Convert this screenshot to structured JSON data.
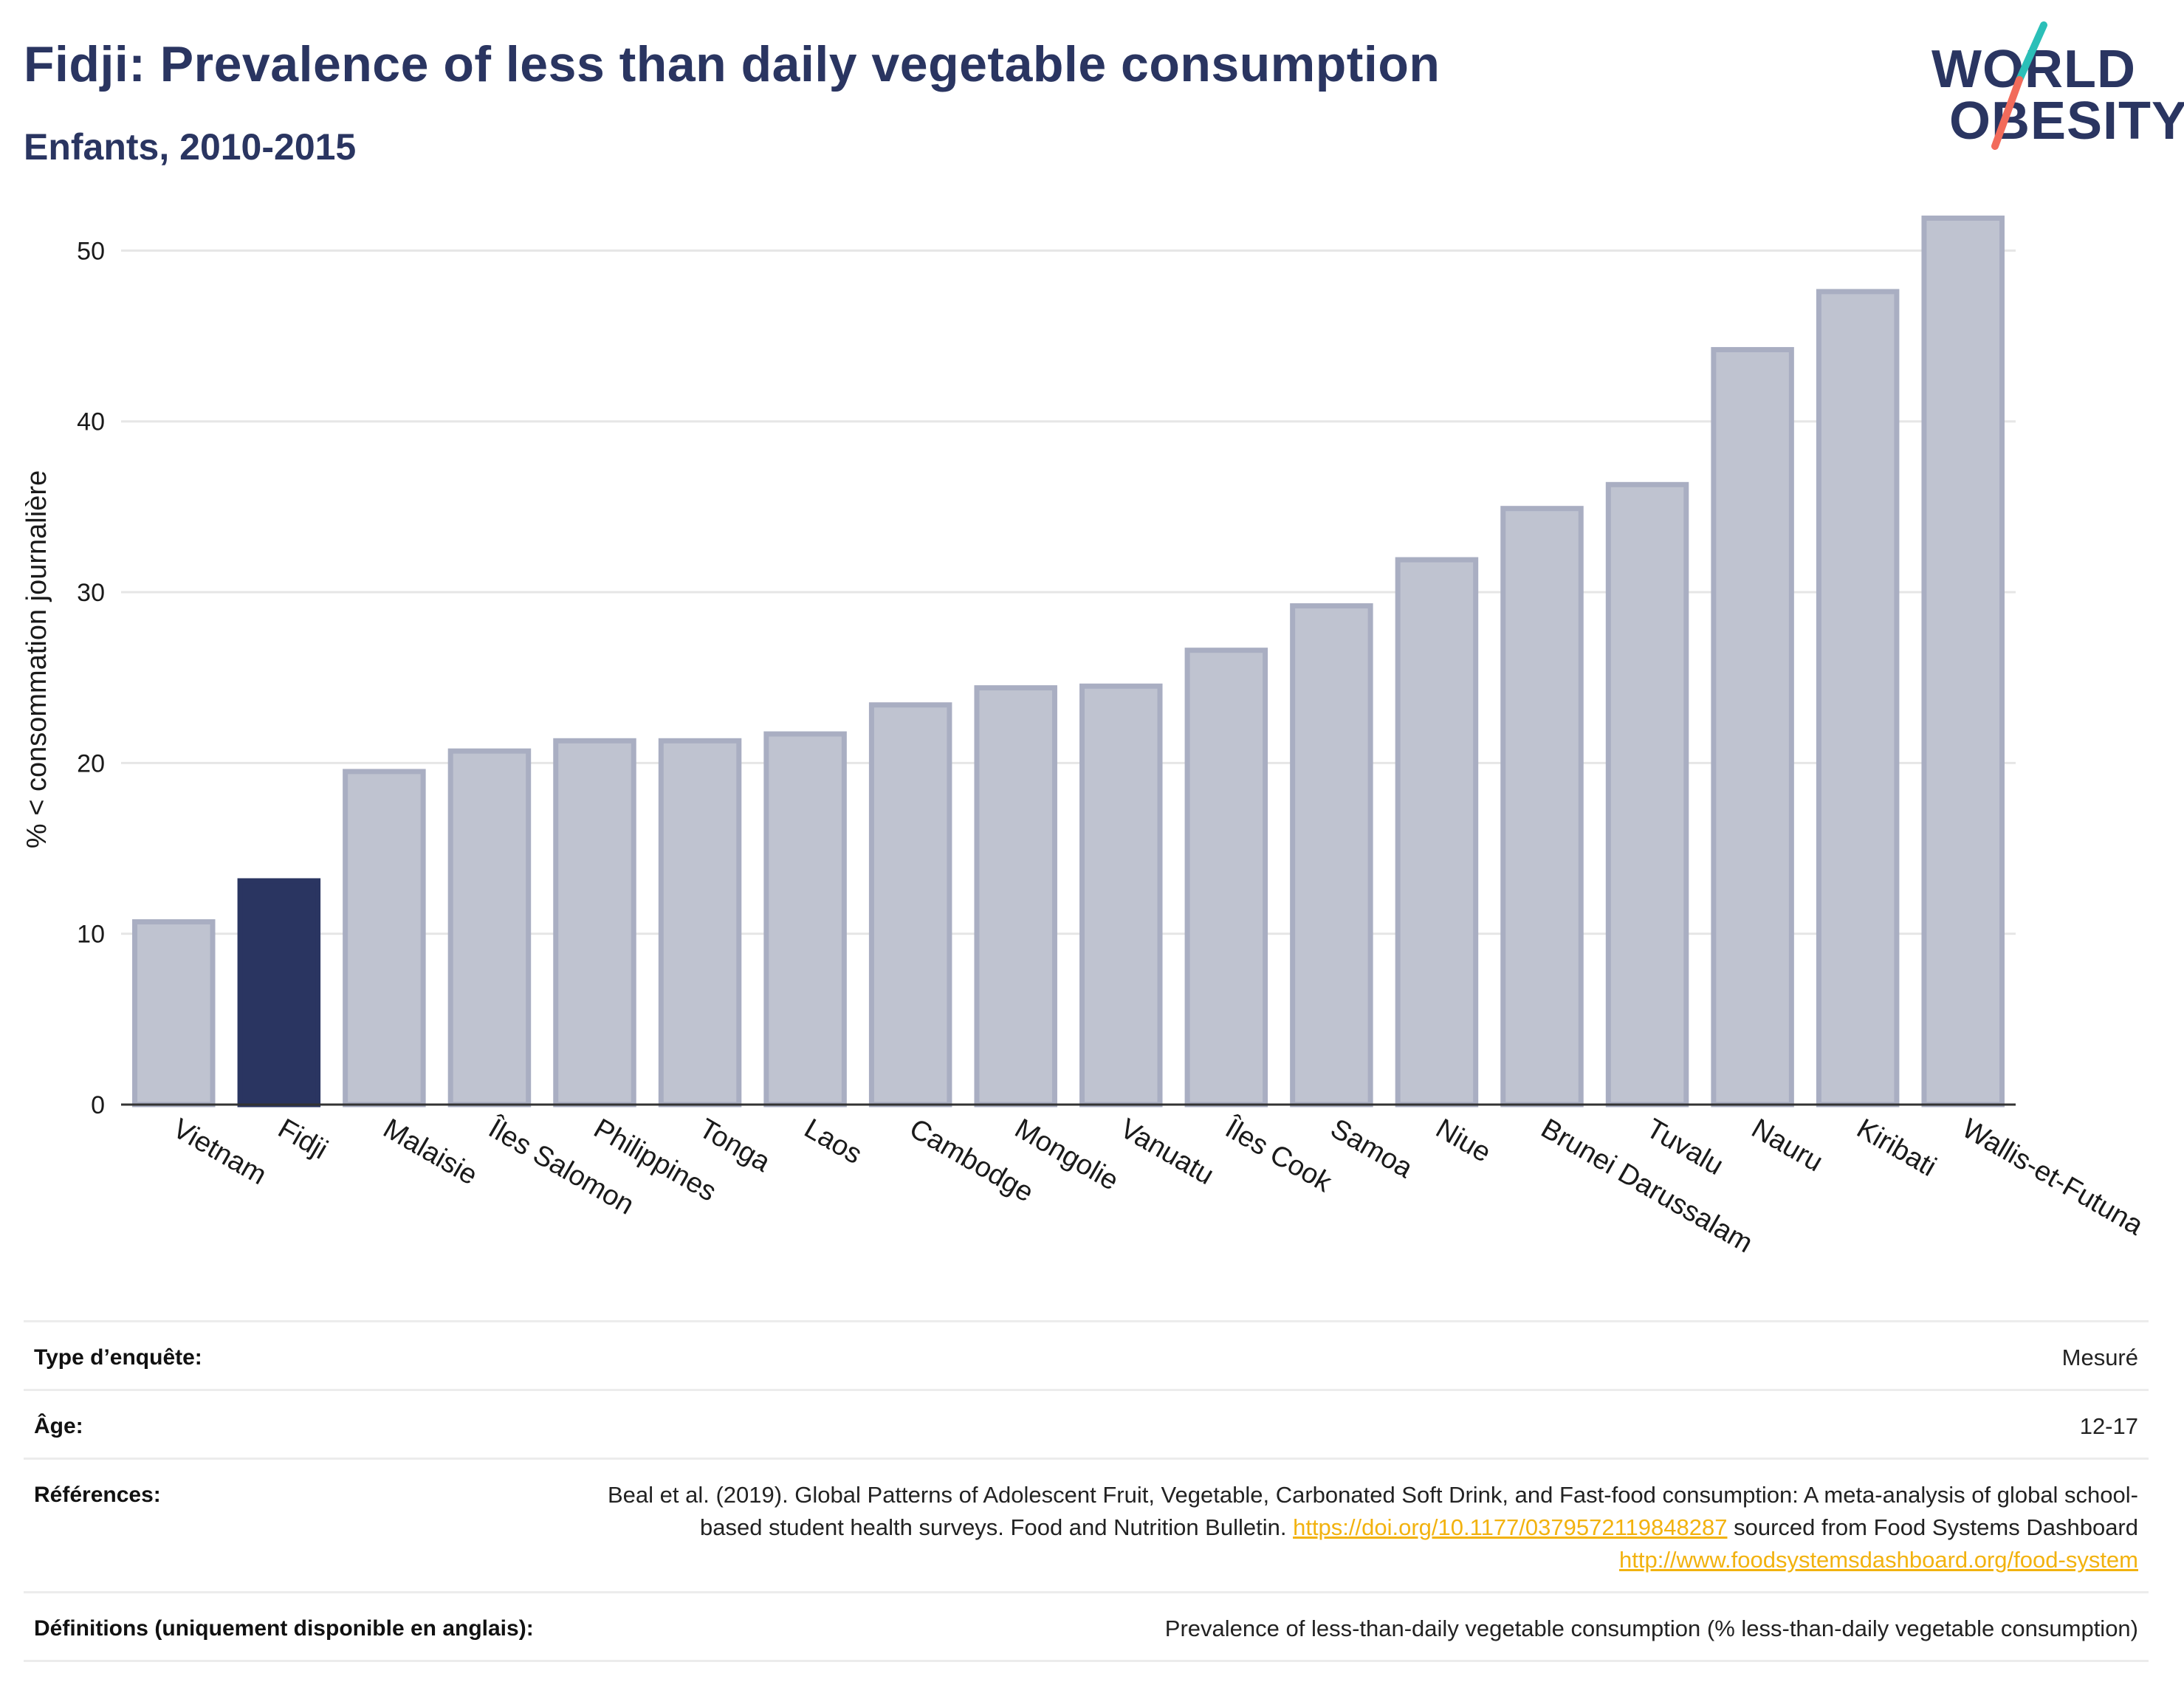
{
  "header": {
    "title": "Fidji: Prevalence of less than daily vegetable consumption",
    "subtitle": "Enfants, 2010-2015"
  },
  "logo": {
    "line1": "WORLD",
    "line2": "OBESITY",
    "slash_colors": [
      "#2bbfb8",
      "#f26b5b"
    ]
  },
  "colors": {
    "bar_default": "#bfc3d0",
    "bar_border": "#a9aec2",
    "bar_highlight": "#2a3561",
    "grid": "#e6e6e6",
    "axis": "#333333",
    "text": "#1a1a1a"
  },
  "chart_data": {
    "type": "bar",
    "title": "Fidji: Prevalence of less than daily vegetable consumption",
    "subtitle": "Enfants, 2010-2015",
    "xlabel": "",
    "ylabel": "% < consommation journalière",
    "ylim": [
      0,
      53
    ],
    "yticks": [
      0,
      10,
      20,
      30,
      40,
      50
    ],
    "grid": true,
    "highlight": "Fidji",
    "categories": [
      "Vietnam",
      "Fidji",
      "Malaisie",
      "Îles Salomon",
      "Philippines",
      "Tonga",
      "Laos",
      "Cambodge",
      "Mongolie",
      "Vanuatu",
      "Îles Cook",
      "Samoa",
      "Niue",
      "Brunei Darussalam",
      "Tuvalu",
      "Nauru",
      "Kiribati",
      "Wallis-et-Futuna"
    ],
    "values": [
      10.7,
      13.1,
      19.5,
      20.7,
      21.3,
      21.3,
      21.7,
      23.4,
      24.4,
      24.5,
      26.6,
      29.2,
      31.9,
      34.9,
      36.3,
      44.2,
      47.6,
      51.9
    ]
  },
  "info": {
    "survey_type": {
      "label": "Type d’enquête:",
      "value": "Mesuré"
    },
    "age": {
      "label": "Âge:",
      "value": "12-17"
    },
    "references": {
      "label": "Références:",
      "text1": "Beal et al. (2019). Global Patterns of Adolescent Fruit, Vegetable, Carbonated Soft Drink, and Fast-food consumption: A meta-analysis of global school-based student health surveys. Food and Nutrition Bulletin.",
      "link1": "https://doi.org/10.1177/0379572119848287",
      "text2": "sourced from Food Systems Dashboard",
      "link2": "http://www.foodsystemsdashboard.org/food-system"
    },
    "definitions": {
      "label": "Définitions (uniquement disponible en anglais):",
      "value": "Prevalence of less-than-daily vegetable consumption (% less-than-daily vegetable consumption)"
    }
  }
}
